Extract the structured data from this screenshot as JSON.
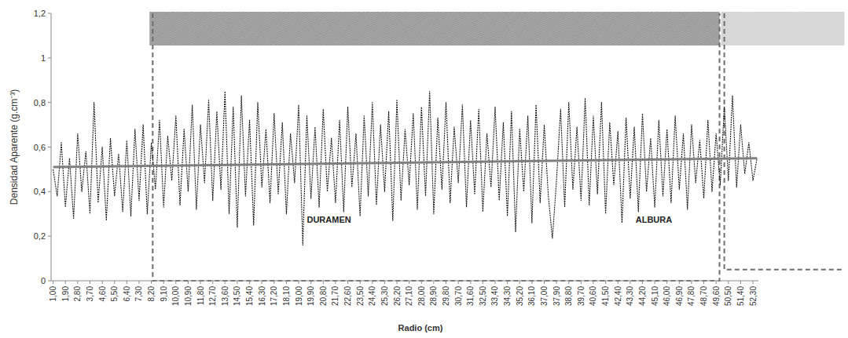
{
  "chart_data": {
    "type": "line",
    "x_label": "Radio (cm)",
    "y_label": "Densidad Aparente (g.cm⁻³)",
    "xlim": [
      0.85,
      52.7
    ],
    "ylim": [
      0,
      1.2
    ],
    "yticks": [
      0,
      {
        "value": 0.2,
        "label": "0,2"
      },
      {
        "value": 0.4,
        "label": "0,4"
      },
      {
        "value": 0.6,
        "label": "0,6"
      },
      {
        "value": 0.8,
        "label": "0,8"
      },
      1,
      {
        "value": 1.2,
        "label": "1,2"
      }
    ],
    "xticks": [
      {
        "value": 1,
        "label": "1,00"
      },
      {
        "value": 1.9,
        "label": "1,90"
      },
      {
        "value": 2.8,
        "label": "2,80"
      },
      {
        "value": 3.7,
        "label": "3,70"
      },
      {
        "value": 4.6,
        "label": "4,60"
      },
      {
        "value": 5.5,
        "label": "5,50"
      },
      {
        "value": 6.4,
        "label": "6,40"
      },
      {
        "value": 7.3,
        "label": "7,30"
      },
      {
        "value": 8.2,
        "label": "8,20"
      },
      {
        "value": 9.1,
        "label": "9,10"
      },
      {
        "value": 10,
        "label": "10,00"
      },
      {
        "value": 10.9,
        "label": "10,90"
      },
      {
        "value": 11.8,
        "label": "11,80"
      },
      {
        "value": 12.7,
        "label": "12,70"
      },
      {
        "value": 13.6,
        "label": "13,60"
      },
      {
        "value": 14.5,
        "label": "14,50"
      },
      {
        "value": 15.4,
        "label": "15,40"
      },
      {
        "value": 16.3,
        "label": "16,30"
      },
      {
        "value": 17.2,
        "label": "17,20"
      },
      {
        "value": 18.1,
        "label": "18,10"
      },
      {
        "value": 19,
        "label": "19,00"
      },
      {
        "value": 19.9,
        "label": "19,90"
      },
      {
        "value": 20.8,
        "label": "20,80"
      },
      {
        "value": 21.7,
        "label": "21,70"
      },
      {
        "value": 22.6,
        "label": "22,60"
      },
      {
        "value": 23.5,
        "label": "23,50"
      },
      {
        "value": 24.4,
        "label": "24,40"
      },
      {
        "value": 25.3,
        "label": "25,30"
      },
      {
        "value": 26.2,
        "label": "26,20"
      },
      {
        "value": 27.1,
        "label": "27,10"
      },
      {
        "value": 28,
        "label": "28,00"
      },
      {
        "value": 28.9,
        "label": "28,90"
      },
      {
        "value": 29.8,
        "label": "29,80"
      },
      {
        "value": 30.7,
        "label": "30,70"
      },
      {
        "value": 31.6,
        "label": "31,60"
      },
      {
        "value": 32.5,
        "label": "32,50"
      },
      {
        "value": 33.4,
        "label": "33,40"
      },
      {
        "value": 34.3,
        "label": "34,30"
      },
      {
        "value": 35.2,
        "label": "35,20"
      },
      {
        "value": 36.1,
        "label": "36,10"
      },
      {
        "value": 37,
        "label": "37,00"
      },
      {
        "value": 37.9,
        "label": "37,90"
      },
      {
        "value": 38.8,
        "label": "38,80"
      },
      {
        "value": 39.7,
        "label": "39,70"
      },
      {
        "value": 40.6,
        "label": "40,60"
      },
      {
        "value": 41.5,
        "label": "41,50"
      },
      {
        "value": 42.4,
        "label": "42,40"
      },
      {
        "value": 43.3,
        "label": "43,30"
      },
      {
        "value": 44.2,
        "label": "44,20"
      },
      {
        "value": 45.1,
        "label": "45,10"
      },
      {
        "value": 46,
        "label": "46,00"
      },
      {
        "value": 46.9,
        "label": "46,90"
      },
      {
        "value": 47.8,
        "label": "47,80"
      },
      {
        "value": 48.7,
        "label": "48,70"
      },
      {
        "value": 49.6,
        "label": "49,60"
      },
      {
        "value": 50.5,
        "label": "50,50"
      },
      {
        "value": 51.4,
        "label": "51,40"
      },
      {
        "value": 52.3,
        "label": "52,30"
      }
    ],
    "series": [
      {
        "type": "line",
        "color": "#1a1a1a",
        "line_style": "dotted",
        "x": [
          1,
          1.3,
          1.6,
          1.9,
          2.2,
          2.5,
          2.8,
          3.1,
          3.4,
          3.7,
          4,
          4.3,
          4.6,
          4.9,
          5.2,
          5.5,
          5.8,
          6.1,
          6.4,
          6.7,
          7,
          7.3,
          7.6,
          7.9,
          8.2,
          8.5,
          8.8,
          9.1,
          9.4,
          9.7,
          10,
          10.3,
          10.6,
          10.9,
          11.2,
          11.5,
          11.8,
          12.1,
          12.4,
          12.7,
          13,
          13.3,
          13.6,
          13.9,
          14.2,
          14.5,
          14.8,
          15.1,
          15.4,
          15.7,
          16,
          16.3,
          16.6,
          16.9,
          17.2,
          17.5,
          17.8,
          18.1,
          18.4,
          18.7,
          19,
          19.3,
          19.6,
          19.9,
          20.2,
          20.5,
          20.8,
          21.1,
          21.4,
          21.7,
          22,
          22.3,
          22.6,
          22.9,
          23.2,
          23.5,
          23.8,
          24.1,
          24.4,
          24.7,
          25,
          25.3,
          25.6,
          25.9,
          26.2,
          26.5,
          26.8,
          27.1,
          27.4,
          27.7,
          28,
          28.3,
          28.6,
          28.9,
          29.2,
          29.5,
          29.8,
          30.1,
          30.4,
          30.7,
          31,
          31.3,
          31.6,
          31.9,
          32.2,
          32.5,
          32.8,
          33.1,
          33.4,
          33.7,
          34,
          34.3,
          34.6,
          34.9,
          35.2,
          35.5,
          35.8,
          36.1,
          36.4,
          36.7,
          37,
          37.3,
          37.6,
          37.9,
          38.2,
          38.5,
          38.8,
          39.1,
          39.4,
          39.7,
          40,
          40.3,
          40.6,
          40.9,
          41.2,
          41.5,
          41.8,
          42.1,
          42.4,
          42.7,
          43,
          43.3,
          43.6,
          43.9,
          44.2,
          44.5,
          44.8,
          45.1,
          45.4,
          45.7,
          46,
          46.3,
          46.6,
          46.9,
          47.2,
          47.5,
          47.8,
          48.1,
          48.4,
          48.7,
          49,
          49.3,
          49.6,
          49.9,
          50.2,
          50.5,
          50.8,
          51.1,
          51.4,
          51.7,
          52,
          52.3,
          52.6
        ],
        "values": [
          0.5,
          0.38,
          0.62,
          0.33,
          0.55,
          0.28,
          0.66,
          0.4,
          0.58,
          0.3,
          0.8,
          0.35,
          0.6,
          0.27,
          0.64,
          0.38,
          0.57,
          0.31,
          0.63,
          0.29,
          0.68,
          0.36,
          0.7,
          0.3,
          0.62,
          0.41,
          0.72,
          0.33,
          0.65,
          0.45,
          0.74,
          0.34,
          0.68,
          0.4,
          0.79,
          0.32,
          0.7,
          0.44,
          0.81,
          0.36,
          0.76,
          0.41,
          0.85,
          0.3,
          0.78,
          0.24,
          0.83,
          0.38,
          0.72,
          0.25,
          0.8,
          0.42,
          0.68,
          0.35,
          0.75,
          0.39,
          0.71,
          0.3,
          0.66,
          0.44,
          0.79,
          0.16,
          0.74,
          0.37,
          0.69,
          0.33,
          0.77,
          0.4,
          0.64,
          0.35,
          0.72,
          0.31,
          0.78,
          0.42,
          0.66,
          0.29,
          0.74,
          0.38,
          0.8,
          0.34,
          0.7,
          0.4,
          0.76,
          0.27,
          0.81,
          0.36,
          0.68,
          0.43,
          0.75,
          0.32,
          0.78,
          0.38,
          0.85,
          0.3,
          0.73,
          0.41,
          0.8,
          0.35,
          0.69,
          0.44,
          0.79,
          0.33,
          0.72,
          0.39,
          0.77,
          0.31,
          0.66,
          0.42,
          0.78,
          0.36,
          0.71,
          0.29,
          0.76,
          0.22,
          0.68,
          0.4,
          0.74,
          0.26,
          0.79,
          0.35,
          0.7,
          0.38,
          0.19,
          0.45,
          0.77,
          0.33,
          0.8,
          0.41,
          0.69,
          0.36,
          0.82,
          0.34,
          0.74,
          0.39,
          0.8,
          0.3,
          0.71,
          0.43,
          0.67,
          0.26,
          0.73,
          0.37,
          0.69,
          0.31,
          0.75,
          0.4,
          0.64,
          0.33,
          0.72,
          0.38,
          0.68,
          0.35,
          0.74,
          0.41,
          0.66,
          0.32,
          0.7,
          0.44,
          0.63,
          0.37,
          0.72,
          0.4,
          0.66,
          0.43,
          0.78,
          0.45,
          0.83,
          0.42,
          0.7,
          0.48,
          0.62,
          0.45,
          0.55
        ]
      },
      {
        "type": "line",
        "color": "#7f7f7f",
        "line_style": "solid",
        "x": [
          1,
          52.6
        ],
        "values": [
          0.51,
          0.55
        ]
      }
    ],
    "annotations": [
      {
        "text": "DURAMEN",
        "x": 19.6,
        "y": 0.26
      },
      {
        "text": "ALBURA",
        "x": 43.7,
        "y": 0.26
      }
    ],
    "zones": [
      {
        "x0": 8.3,
        "x1": 49.85,
        "y0": 0,
        "color": "#8a8a8a"
      },
      {
        "x0": 50.2,
        "x1": 59,
        "y0": 0.05,
        "color": "#cfcfcf"
      }
    ]
  }
}
